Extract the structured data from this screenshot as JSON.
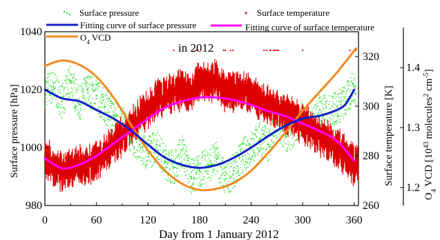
{
  "chart_data": {
    "type": "line",
    "title": "",
    "annotation": "in 2012",
    "xlabel": "Day from 1 January 2012",
    "x_ticks": [
      "0",
      "60",
      "120",
      "180",
      "240",
      "300",
      "360"
    ],
    "xlim": [
      0,
      365
    ],
    "axes": {
      "left": {
        "label": "Surface pressure [hPa]",
        "ylim": [
          980,
          1040
        ],
        "ticks": [
          "980",
          "1000",
          "1020",
          "1040"
        ]
      },
      "right_inner": {
        "label": "Surface temperature [K]",
        "ylim": [
          260,
          330
        ],
        "ticks": [
          "260",
          "280",
          "300",
          "320"
        ]
      },
      "right_outer": {
        "label_main": "O",
        "label_sub1": "4",
        "label_mid": " VCD [10",
        "label_sup1": "43",
        "label_mid2": " molecules",
        "label_sup2": "2",
        "label_mid3": " cm",
        "label_sup3": "-5",
        "label_end": "]",
        "ylim": [
          1.17,
          1.46
        ],
        "ticks": [
          "1.2",
          "1.3",
          "1.4"
        ]
      }
    },
    "legend": [
      {
        "name": "Surface pressure",
        "marker": "dot",
        "color": "#22dd22"
      },
      {
        "name": "Surface temperature",
        "marker": "dot",
        "color": "#dd0000"
      },
      {
        "name": "Fitting curve of surface pressure",
        "marker": "line",
        "color": "#1020c8"
      },
      {
        "name": "Fitting curve of surface temperature",
        "marker": "line",
        "color": "#ff00ff"
      },
      {
        "name_main": "O",
        "name_sub": "4",
        "name_rest": " VCD",
        "marker": "line",
        "color": "#f08a1c"
      }
    ],
    "series": [
      {
        "name": "Surface pressure",
        "axis": "left",
        "style": "dots",
        "color": "#22dd22",
        "x": [
          0,
          10,
          20,
          30,
          40,
          50,
          60,
          70,
          80,
          90,
          100,
          110,
          120,
          130,
          140,
          150,
          160,
          170,
          180,
          190,
          200,
          210,
          220,
          230,
          240,
          250,
          260,
          270,
          280,
          290,
          300,
          310,
          320,
          330,
          340,
          350,
          360
        ],
        "y": [
          1020,
          1021,
          1016,
          1023,
          1015,
          1020,
          1018,
          1014,
          1011,
          1008,
          1004,
          1001,
          998,
          1001,
          995,
          993,
          999,
          990,
          992,
          994,
          996,
          989,
          992,
          997,
          1000,
          1003,
          1001,
          1008,
          1004,
          1006,
          1011,
          1007,
          1013,
          1012,
          1014,
          1016,
          1021
        ]
      },
      {
        "name": "Surface temperature",
        "axis": "right_inner",
        "style": "dense",
        "color": "#dd0000",
        "x": [
          0,
          10,
          20,
          30,
          40,
          50,
          60,
          70,
          80,
          90,
          100,
          110,
          120,
          130,
          140,
          150,
          160,
          170,
          180,
          190,
          200,
          210,
          220,
          230,
          240,
          250,
          260,
          270,
          280,
          290,
          300,
          310,
          320,
          330,
          340,
          350,
          360
        ],
        "y": [
          280,
          276,
          273,
          275,
          277,
          276,
          278,
          281,
          285,
          288,
          292,
          296,
          299,
          303,
          304,
          305,
          307,
          306,
          310,
          309,
          311,
          305,
          306,
          307,
          304,
          302,
          300,
          299,
          297,
          295,
          293,
          291,
          288,
          286,
          283,
          280,
          276
        ]
      },
      {
        "name": "Fitting curve of surface pressure",
        "axis": "left",
        "style": "line",
        "color": "#1020c8",
        "x": [
          0,
          20,
          40,
          60,
          80,
          100,
          120,
          140,
          160,
          180,
          200,
          220,
          240,
          260,
          280,
          300,
          320,
          340,
          350,
          360
        ],
        "y": [
          1020,
          1017,
          1016,
          1013,
          1010,
          1006,
          1001,
          996.5,
          994,
          993,
          994,
          996.5,
          1000,
          1004,
          1007.5,
          1010,
          1011,
          1013,
          1015,
          1020
        ]
      },
      {
        "name": "Fitting curve of surface temperature",
        "axis": "right_inner",
        "style": "line",
        "color": "#ff00ff",
        "x": [
          0,
          20,
          40,
          60,
          80,
          100,
          120,
          140,
          160,
          180,
          200,
          220,
          240,
          260,
          280,
          300,
          320,
          340,
          360
        ],
        "y": [
          279,
          275,
          276.5,
          280,
          285,
          290,
          295,
          299.5,
          302,
          303.5,
          303.5,
          302.5,
          300.5,
          298,
          296,
          293,
          290,
          286,
          278
        ]
      },
      {
        "name": "O4 VCD",
        "axis": "right_outer",
        "style": "line",
        "color": "#f08a1c",
        "x": [
          0,
          20,
          40,
          60,
          80,
          100,
          120,
          140,
          160,
          180,
          200,
          220,
          240,
          260,
          280,
          300,
          320,
          340,
          362
        ],
        "y": [
          1.403,
          1.412,
          1.405,
          1.385,
          1.35,
          1.305,
          1.262,
          1.228,
          1.206,
          1.196,
          1.198,
          1.208,
          1.228,
          1.258,
          1.292,
          1.328,
          1.36,
          1.392,
          1.432
        ]
      }
    ],
    "outliers": {
      "axis": "right_inner",
      "color": "#dd0000",
      "x": [
        150,
        176,
        178,
        208,
        210,
        216,
        219,
        255,
        258,
        262,
        263,
        266,
        268,
        270,
        272,
        300,
        355,
        362
      ],
      "y": [
        322.5,
        322.5,
        322.5,
        322.5,
        322.5,
        322.5,
        322.5,
        322.5,
        322.5,
        322.5,
        322.5,
        322.5,
        322.5,
        322.5,
        322.5,
        322.5,
        322.5,
        322.5
      ]
    }
  }
}
